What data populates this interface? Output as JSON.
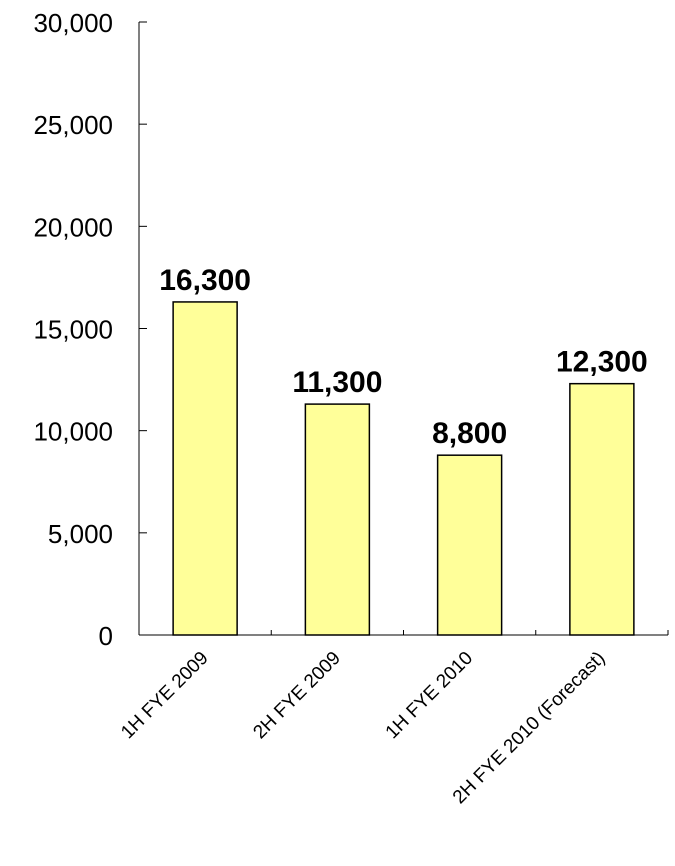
{
  "chart_data": {
    "type": "bar",
    "categories": [
      "1H FYE 2009",
      "2H FYE 2009",
      "1H FYE 2010",
      "2H FYE 2010 (Forecast)"
    ],
    "values": [
      16300,
      11300,
      8800,
      12300
    ],
    "data_labels": [
      "16,300",
      "11,300",
      "8,800",
      "12,300"
    ],
    "y_ticks": [
      0,
      5000,
      10000,
      15000,
      20000,
      25000,
      30000
    ],
    "y_tick_labels": [
      "0",
      "5,000",
      "10,000",
      "15,000",
      "20,000",
      "25,000",
      "30,000"
    ],
    "ylim": [
      0,
      30000
    ],
    "title": "",
    "xlabel": "",
    "ylabel": "",
    "grid": false,
    "legend": "none",
    "bar_color": "#ffff99",
    "bar_stroke": "#000000"
  }
}
